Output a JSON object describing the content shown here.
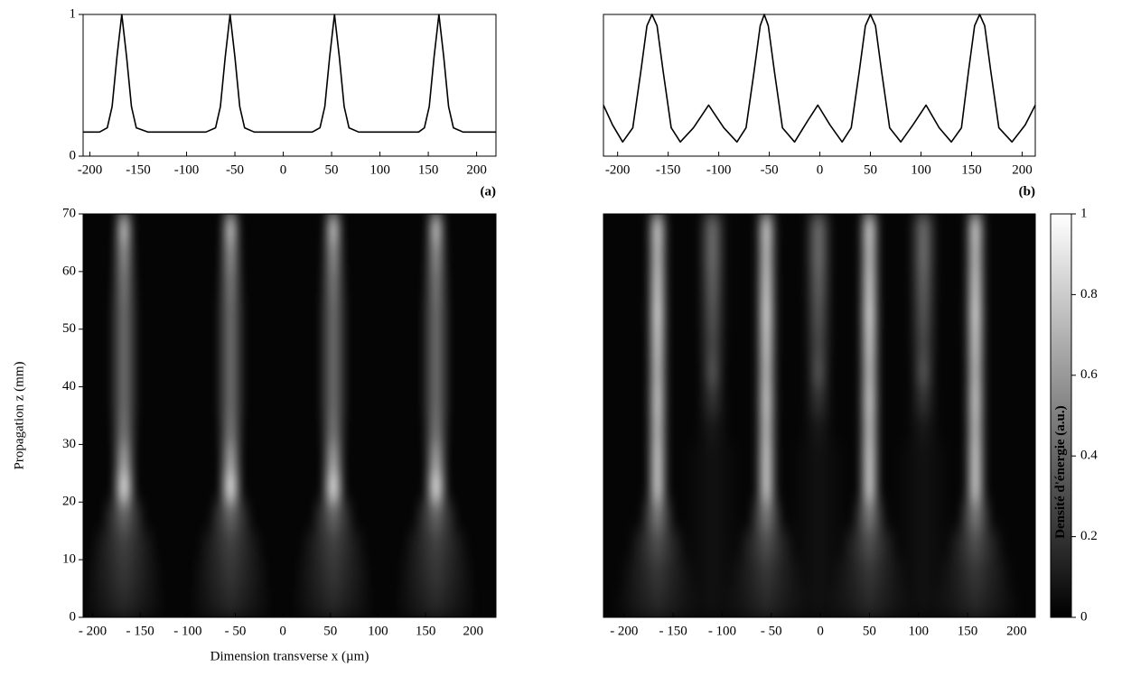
{
  "chart_data": [
    {
      "type": "line",
      "panel_label": "(a)",
      "xlim": [
        -207,
        220
      ],
      "ylim": [
        0,
        1
      ],
      "yticks": [
        0,
        1
      ],
      "xticks": [
        -200,
        -150,
        -100,
        -50,
        0,
        50,
        100,
        150,
        200
      ],
      "x": [
        -207,
        -190,
        -182,
        -177,
        -172,
        -167,
        -162,
        -157,
        -152,
        -140,
        -110,
        -80,
        -70,
        -65,
        -60,
        -55,
        -50,
        -45,
        -40,
        -30,
        0,
        30,
        38,
        43,
        48,
        53,
        58,
        63,
        68,
        78,
        110,
        140,
        146,
        151,
        156,
        161,
        166,
        171,
        176,
        186,
        220
      ],
      "values": [
        0.17,
        0.17,
        0.2,
        0.35,
        0.7,
        1,
        0.7,
        0.35,
        0.2,
        0.17,
        0.17,
        0.17,
        0.2,
        0.35,
        0.7,
        1,
        0.7,
        0.35,
        0.2,
        0.17,
        0.17,
        0.17,
        0.2,
        0.35,
        0.7,
        1,
        0.7,
        0.35,
        0.2,
        0.17,
        0.17,
        0.17,
        0.2,
        0.35,
        0.7,
        1,
        0.7,
        0.35,
        0.2,
        0.17,
        0.17
      ],
      "color": "#000000"
    },
    {
      "type": "line",
      "panel_label": "(b)",
      "xlim": [
        -214,
        213
      ],
      "ylim": [
        0,
        1
      ],
      "xticks": [
        -200,
        -150,
        -100,
        -50,
        0,
        50,
        100,
        150,
        200
      ],
      "x": [
        -214,
        -205,
        -195,
        -185,
        -177,
        -171,
        -166,
        -161,
        -155,
        -147,
        -138,
        -125,
        -110,
        -95,
        -82,
        -73,
        -65,
        -59,
        -55,
        -51,
        -45,
        -37,
        -25,
        -12,
        -2,
        10,
        22,
        31,
        39,
        45,
        50,
        55,
        61,
        69,
        80,
        92,
        105,
        118,
        130,
        140,
        147,
        153,
        158,
        163,
        169,
        177,
        190,
        203,
        213
      ],
      "values": [
        0.36,
        0.22,
        0.1,
        0.2,
        0.6,
        0.92,
        1,
        0.92,
        0.6,
        0.2,
        0.1,
        0.2,
        0.36,
        0.2,
        0.1,
        0.2,
        0.6,
        0.92,
        1,
        0.92,
        0.6,
        0.2,
        0.1,
        0.25,
        0.36,
        0.22,
        0.1,
        0.2,
        0.6,
        0.92,
        1,
        0.92,
        0.6,
        0.2,
        0.1,
        0.22,
        0.36,
        0.2,
        0.1,
        0.2,
        0.6,
        0.92,
        1,
        0.92,
        0.6,
        0.2,
        0.1,
        0.22,
        0.36
      ],
      "color": "#000000"
    },
    {
      "type": "heatmap",
      "x_label": "Dimension transverse x (µm)",
      "y_label": "Propagation z (mm)",
      "xlim": [
        -210,
        224
      ],
      "ylim": [
        0,
        70
      ],
      "xticks": [
        {
          "value": -200,
          "label": "- 200"
        },
        {
          "value": -150,
          "label": "- 150"
        },
        {
          "value": -100,
          "label": "- 100"
        },
        {
          "value": -50,
          "label": "- 50"
        },
        0,
        50,
        100,
        150,
        200
      ],
      "yticks": [
        0,
        10,
        20,
        30,
        40,
        50,
        60,
        70
      ],
      "zbins": [
        0,
        5,
        10,
        15,
        20,
        25,
        30,
        35,
        40,
        45,
        50,
        55,
        60,
        65,
        70
      ],
      "beams": [
        {
          "x": -167,
          "values": [
            0.15,
            0.2,
            0.25,
            0.4,
            0.95,
            0.7,
            0.5,
            0.45,
            0.45,
            0.45,
            0.45,
            0.5,
            0.6,
            0.8
          ],
          "widths": [
            30,
            28,
            24,
            16,
            9,
            9,
            10,
            11,
            11,
            11,
            11,
            10,
            9,
            8
          ]
        },
        {
          "x": -55,
          "values": [
            0.15,
            0.2,
            0.25,
            0.4,
            0.95,
            0.7,
            0.5,
            0.45,
            0.45,
            0.45,
            0.45,
            0.5,
            0.6,
            0.8
          ],
          "widths": [
            30,
            28,
            24,
            16,
            9,
            9,
            10,
            11,
            11,
            11,
            11,
            10,
            9,
            8
          ]
        },
        {
          "x": 53,
          "values": [
            0.15,
            0.2,
            0.25,
            0.4,
            0.95,
            0.7,
            0.5,
            0.45,
            0.45,
            0.45,
            0.45,
            0.5,
            0.6,
            0.8
          ],
          "widths": [
            30,
            28,
            24,
            16,
            9,
            9,
            10,
            11,
            11,
            11,
            11,
            10,
            9,
            8
          ]
        },
        {
          "x": 161,
          "values": [
            0.15,
            0.2,
            0.25,
            0.4,
            0.95,
            0.7,
            0.5,
            0.45,
            0.45,
            0.45,
            0.45,
            0.5,
            0.6,
            0.8
          ],
          "widths": [
            30,
            28,
            24,
            16,
            9,
            9,
            10,
            11,
            11,
            11,
            11,
            10,
            9,
            8
          ]
        }
      ]
    },
    {
      "type": "heatmap",
      "xlim": [
        -221,
        219
      ],
      "ylim": [
        0,
        70
      ],
      "xticks": [
        {
          "value": -200,
          "label": "- 200"
        },
        {
          "value": -150,
          "label": "- 150"
        },
        {
          "value": -100,
          "label": "- 100"
        },
        {
          "value": -50,
          "label": "- 50"
        },
        0,
        50,
        100,
        150,
        200
      ],
      "zbins": [
        0,
        5,
        10,
        15,
        20,
        25,
        30,
        35,
        40,
        45,
        50,
        55,
        60,
        65,
        70
      ],
      "beams": [
        {
          "x": -166,
          "values": [
            0.15,
            0.2,
            0.3,
            0.5,
            0.85,
            0.85,
            0.8,
            0.85,
            0.8,
            0.85,
            0.9,
            0.85,
            0.8,
            0.85
          ],
          "widths": [
            30,
            26,
            20,
            12,
            8,
            8,
            8,
            8,
            8,
            8,
            8,
            8,
            8,
            8
          ]
        },
        {
          "x": -110,
          "values": [
            0.05,
            0.05,
            0.05,
            0.05,
            0.05,
            0.05,
            0.08,
            0.2,
            0.35,
            0.3,
            0.35,
            0.4,
            0.45,
            0.45
          ],
          "widths": [
            20,
            20,
            20,
            20,
            20,
            20,
            12,
            10,
            9,
            10,
            10,
            10,
            10,
            10
          ]
        },
        {
          "x": -55,
          "values": [
            0.15,
            0.2,
            0.3,
            0.5,
            0.85,
            0.85,
            0.8,
            0.85,
            0.8,
            0.85,
            0.9,
            0.85,
            0.8,
            0.85
          ],
          "widths": [
            30,
            26,
            20,
            12,
            8,
            8,
            8,
            8,
            8,
            8,
            8,
            8,
            8,
            8
          ]
        },
        {
          "x": -2,
          "values": [
            0.05,
            0.05,
            0.05,
            0.05,
            0.05,
            0.05,
            0.08,
            0.2,
            0.35,
            0.3,
            0.35,
            0.4,
            0.45,
            0.45
          ],
          "widths": [
            20,
            20,
            20,
            20,
            20,
            20,
            12,
            10,
            9,
            10,
            10,
            10,
            10,
            10
          ]
        },
        {
          "x": 50,
          "values": [
            0.15,
            0.2,
            0.3,
            0.5,
            0.85,
            0.85,
            0.8,
            0.85,
            0.8,
            0.85,
            0.9,
            0.85,
            0.8,
            0.85
          ],
          "widths": [
            30,
            26,
            20,
            12,
            8,
            8,
            8,
            8,
            8,
            8,
            8,
            8,
            8,
            8
          ]
        },
        {
          "x": 105,
          "values": [
            0.05,
            0.05,
            0.05,
            0.05,
            0.05,
            0.05,
            0.08,
            0.2,
            0.35,
            0.3,
            0.35,
            0.4,
            0.45,
            0.45
          ],
          "widths": [
            20,
            20,
            20,
            20,
            20,
            20,
            12,
            10,
            9,
            10,
            10,
            10,
            10,
            10
          ]
        },
        {
          "x": 158,
          "values": [
            0.15,
            0.2,
            0.3,
            0.5,
            0.85,
            0.85,
            0.8,
            0.85,
            0.8,
            0.85,
            0.9,
            0.85,
            0.8,
            0.85
          ],
          "widths": [
            30,
            26,
            20,
            12,
            8,
            8,
            8,
            8,
            8,
            8,
            8,
            8,
            8,
            8
          ]
        }
      ]
    },
    {
      "type": "colorbar",
      "label": "Densité d'énergie (a.u.)",
      "ylim": [
        0,
        1
      ],
      "yticks": [
        0,
        0.2,
        0.4,
        0.6,
        0.8,
        1
      ]
    }
  ]
}
